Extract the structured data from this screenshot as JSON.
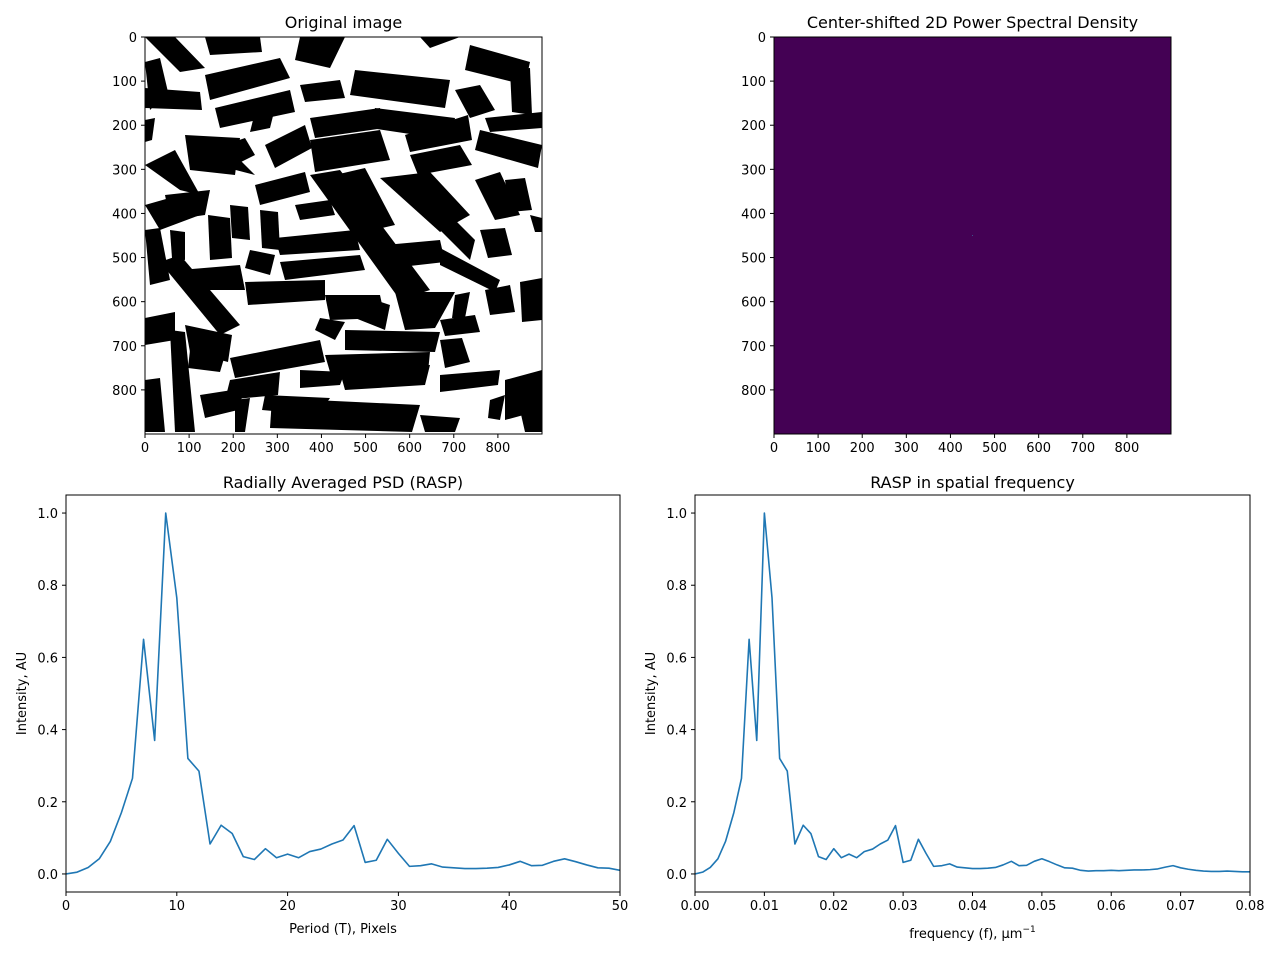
{
  "chart_data": [
    {
      "type": "image",
      "title": "Original image",
      "colormap": "gray",
      "xticks": [
        "0",
        "100",
        "200",
        "300",
        "400",
        "500",
        "600",
        "700",
        "800"
      ],
      "yticks": [
        "0",
        "100",
        "200",
        "300",
        "400",
        "500",
        "600",
        "700",
        "800"
      ],
      "xlim": [
        0,
        900
      ],
      "ylim": [
        900,
        0
      ]
    },
    {
      "type": "heatmap",
      "title": "Center-shifted 2D Power Spectral Density",
      "colormap": "viridis",
      "background_color": "#440154",
      "xticks": [
        "0",
        "100",
        "200",
        "300",
        "400",
        "500",
        "600",
        "700",
        "800"
      ],
      "yticks": [
        "0",
        "100",
        "200",
        "300",
        "400",
        "500",
        "600",
        "700",
        "800"
      ],
      "xlim": [
        0,
        900
      ],
      "ylim": [
        900,
        0
      ]
    },
    {
      "type": "line",
      "title": "Radially Averaged PSD (RASP)",
      "xlabel": "Period (T), Pixels",
      "ylabel": "Intensity, AU",
      "xlim": [
        0,
        50
      ],
      "ylim": [
        -0.05,
        1.05
      ],
      "xticks": [
        "0",
        "10",
        "20",
        "30",
        "40",
        "50"
      ],
      "yticks": [
        "0.0",
        "0.2",
        "0.4",
        "0.6",
        "0.8",
        "1.0"
      ],
      "line_color": "#1f77b4",
      "x": [
        0,
        1,
        2,
        3,
        4,
        5,
        6,
        7,
        8,
        9,
        10,
        11,
        12,
        13,
        14,
        15,
        16,
        17,
        18,
        19,
        20,
        21,
        22,
        23,
        24,
        25,
        26,
        27,
        28,
        29,
        30,
        31,
        32,
        33,
        34,
        35,
        36,
        37,
        38,
        39,
        40,
        41,
        42,
        43,
        44,
        45,
        46,
        47,
        48,
        49,
        50
      ],
      "y": [
        0.0,
        0.005,
        0.018,
        0.042,
        0.09,
        0.17,
        0.265,
        0.65,
        0.37,
        1.0,
        0.765,
        0.32,
        0.285,
        0.083,
        0.135,
        0.112,
        0.048,
        0.04,
        0.07,
        0.045,
        0.055,
        0.045,
        0.062,
        0.069,
        0.083,
        0.094,
        0.134,
        0.032,
        0.038,
        0.096,
        0.057,
        0.021,
        0.023,
        0.028,
        0.019,
        0.017,
        0.015,
        0.015,
        0.016,
        0.018,
        0.025,
        0.035,
        0.023,
        0.024,
        0.035,
        0.042,
        0.034,
        0.025,
        0.017,
        0.016,
        0.01
      ]
    },
    {
      "type": "line",
      "title": "RASP in spatial frequency",
      "xlabel": "frequency (f), μm",
      "xlabel_superscript": "−1",
      "ylabel": "Intensity, AU",
      "xlim": [
        0,
        0.08
      ],
      "ylim": [
        -0.05,
        1.05
      ],
      "xticks": [
        "0.00",
        "0.01",
        "0.02",
        "0.03",
        "0.04",
        "0.05",
        "0.06",
        "0.07",
        "0.08"
      ],
      "yticks": [
        "0.0",
        "0.2",
        "0.4",
        "0.6",
        "0.8",
        "1.0"
      ],
      "line_color": "#1f77b4",
      "x": [
        0,
        0.0011,
        0.0022,
        0.0033,
        0.0044,
        0.0056,
        0.0067,
        0.0078,
        0.0089,
        0.01,
        0.0111,
        0.0122,
        0.0133,
        0.0144,
        0.0156,
        0.0167,
        0.0178,
        0.0189,
        0.02,
        0.0211,
        0.0222,
        0.0233,
        0.0244,
        0.0256,
        0.0267,
        0.0278,
        0.0289,
        0.03,
        0.0311,
        0.0322,
        0.0333,
        0.0344,
        0.0356,
        0.0367,
        0.0378,
        0.0389,
        0.04,
        0.0411,
        0.0422,
        0.0433,
        0.0444,
        0.0456,
        0.0467,
        0.0478,
        0.0489,
        0.05,
        0.0511,
        0.0522,
        0.0533,
        0.0544,
        0.0556,
        0.0567,
        0.0578,
        0.0589,
        0.06,
        0.0611,
        0.0622,
        0.0633,
        0.0644,
        0.0656,
        0.0667,
        0.0678,
        0.0689,
        0.07,
        0.0711,
        0.0722,
        0.0733,
        0.0744,
        0.0756,
        0.0767,
        0.0778,
        0.0789,
        0.08
      ],
      "y": [
        0.0,
        0.005,
        0.018,
        0.042,
        0.09,
        0.17,
        0.265,
        0.65,
        0.37,
        1.0,
        0.765,
        0.32,
        0.285,
        0.083,
        0.135,
        0.112,
        0.048,
        0.04,
        0.07,
        0.045,
        0.055,
        0.045,
        0.062,
        0.069,
        0.083,
        0.094,
        0.134,
        0.032,
        0.038,
        0.096,
        0.057,
        0.021,
        0.023,
        0.028,
        0.019,
        0.017,
        0.015,
        0.015,
        0.016,
        0.018,
        0.025,
        0.035,
        0.023,
        0.024,
        0.035,
        0.042,
        0.034,
        0.025,
        0.017,
        0.016,
        0.01,
        0.008,
        0.009,
        0.009,
        0.01,
        0.009,
        0.01,
        0.011,
        0.011,
        0.012,
        0.014,
        0.019,
        0.023,
        0.017,
        0.013,
        0.01,
        0.008,
        0.007,
        0.007,
        0.008,
        0.007,
        0.006,
        0.006
      ]
    }
  ]
}
